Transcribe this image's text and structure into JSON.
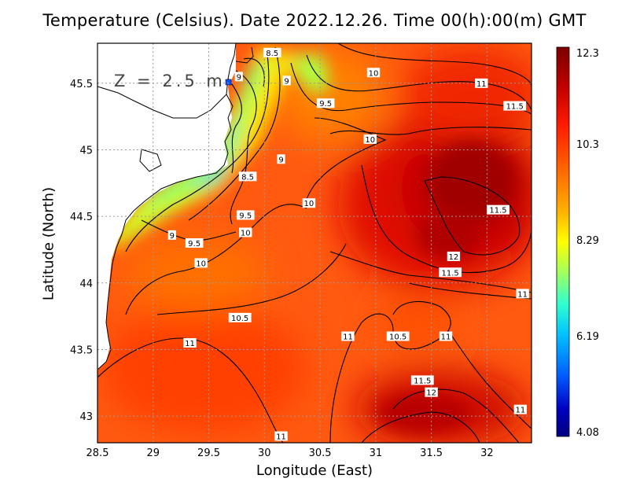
{
  "title": "Temperature (Celsius). Date 2022.12.26. Time 00(h):00(m) GMT",
  "depth_label": "Z = 2.5 m",
  "xlabel": "Longitude (East)",
  "ylabel": "Latitude (North)",
  "x_ticks": [
    "28.5",
    "29",
    "29.5",
    "30",
    "30.5",
    "31",
    "31.5",
    "32"
  ],
  "y_ticks": [
    "43",
    "43.5",
    "44",
    "44.5",
    "45",
    "45.5"
  ],
  "colorbar": {
    "labels": [
      "12.3",
      "10.3",
      "8.29",
      "6.19",
      "4.08"
    ],
    "colors": [
      "#7a0000",
      "#c00000",
      "#ff1a00",
      "#ff6a00",
      "#ffb000",
      "#ffff00",
      "#a0ff60",
      "#30ffd0",
      "#00c0ff",
      "#0060ff",
      "#0000c0",
      "#000080"
    ]
  },
  "chart_data": {
    "type": "heatmap",
    "title": "Temperature (Celsius). Date 2022.12.26. Time 00(h):00(m) GMT",
    "xlabel": "Longitude (East)",
    "ylabel": "Latitude (North)",
    "xlim": [
      28.5,
      32.4
    ],
    "ylim": [
      42.8,
      45.8
    ],
    "value_range": [
      4.08,
      12.3
    ],
    "grid": true,
    "contour_labels": [
      {
        "text": "8.5",
        "lon": 30.07,
        "lat": 45.73
      },
      {
        "text": "9",
        "lon": 29.77,
        "lat": 45.55
      },
      {
        "text": "9",
        "lon": 30.2,
        "lat": 45.52
      },
      {
        "text": "10",
        "lon": 30.98,
        "lat": 45.58
      },
      {
        "text": "11",
        "lon": 31.95,
        "lat": 45.5
      },
      {
        "text": "11.5",
        "lon": 32.25,
        "lat": 45.33
      },
      {
        "text": "9.5",
        "lon": 30.55,
        "lat": 45.35
      },
      {
        "text": "10",
        "lon": 30.95,
        "lat": 45.08
      },
      {
        "text": "9",
        "lon": 30.15,
        "lat": 44.93
      },
      {
        "text": "8.5",
        "lon": 29.85,
        "lat": 44.8
      },
      {
        "text": "10",
        "lon": 30.4,
        "lat": 44.6
      },
      {
        "text": "9.5",
        "lon": 29.83,
        "lat": 44.51
      },
      {
        "text": "10",
        "lon": 29.83,
        "lat": 44.38
      },
      {
        "text": "11.5",
        "lon": 32.1,
        "lat": 44.55
      },
      {
        "text": "9",
        "lon": 29.17,
        "lat": 44.36
      },
      {
        "text": "9.5",
        "lon": 29.37,
        "lat": 44.3
      },
      {
        "text": "12",
        "lon": 31.7,
        "lat": 44.2
      },
      {
        "text": "10",
        "lon": 29.43,
        "lat": 44.15
      },
      {
        "text": "11.5",
        "lon": 31.67,
        "lat": 44.08
      },
      {
        "text": "11",
        "lon": 32.32,
        "lat": 43.92
      },
      {
        "text": "10.5",
        "lon": 29.78,
        "lat": 43.74
      },
      {
        "text": "11",
        "lon": 30.75,
        "lat": 43.6
      },
      {
        "text": "10.5",
        "lon": 31.2,
        "lat": 43.6
      },
      {
        "text": "11",
        "lon": 31.63,
        "lat": 43.6
      },
      {
        "text": "11",
        "lon": 29.33,
        "lat": 43.55
      },
      {
        "text": "11.5",
        "lon": 31.42,
        "lat": 43.27
      },
      {
        "text": "12",
        "lon": 31.5,
        "lat": 43.18
      },
      {
        "text": "11",
        "lon": 32.3,
        "lat": 43.05
      },
      {
        "text": "11",
        "lon": 30.15,
        "lat": 42.85
      }
    ]
  }
}
